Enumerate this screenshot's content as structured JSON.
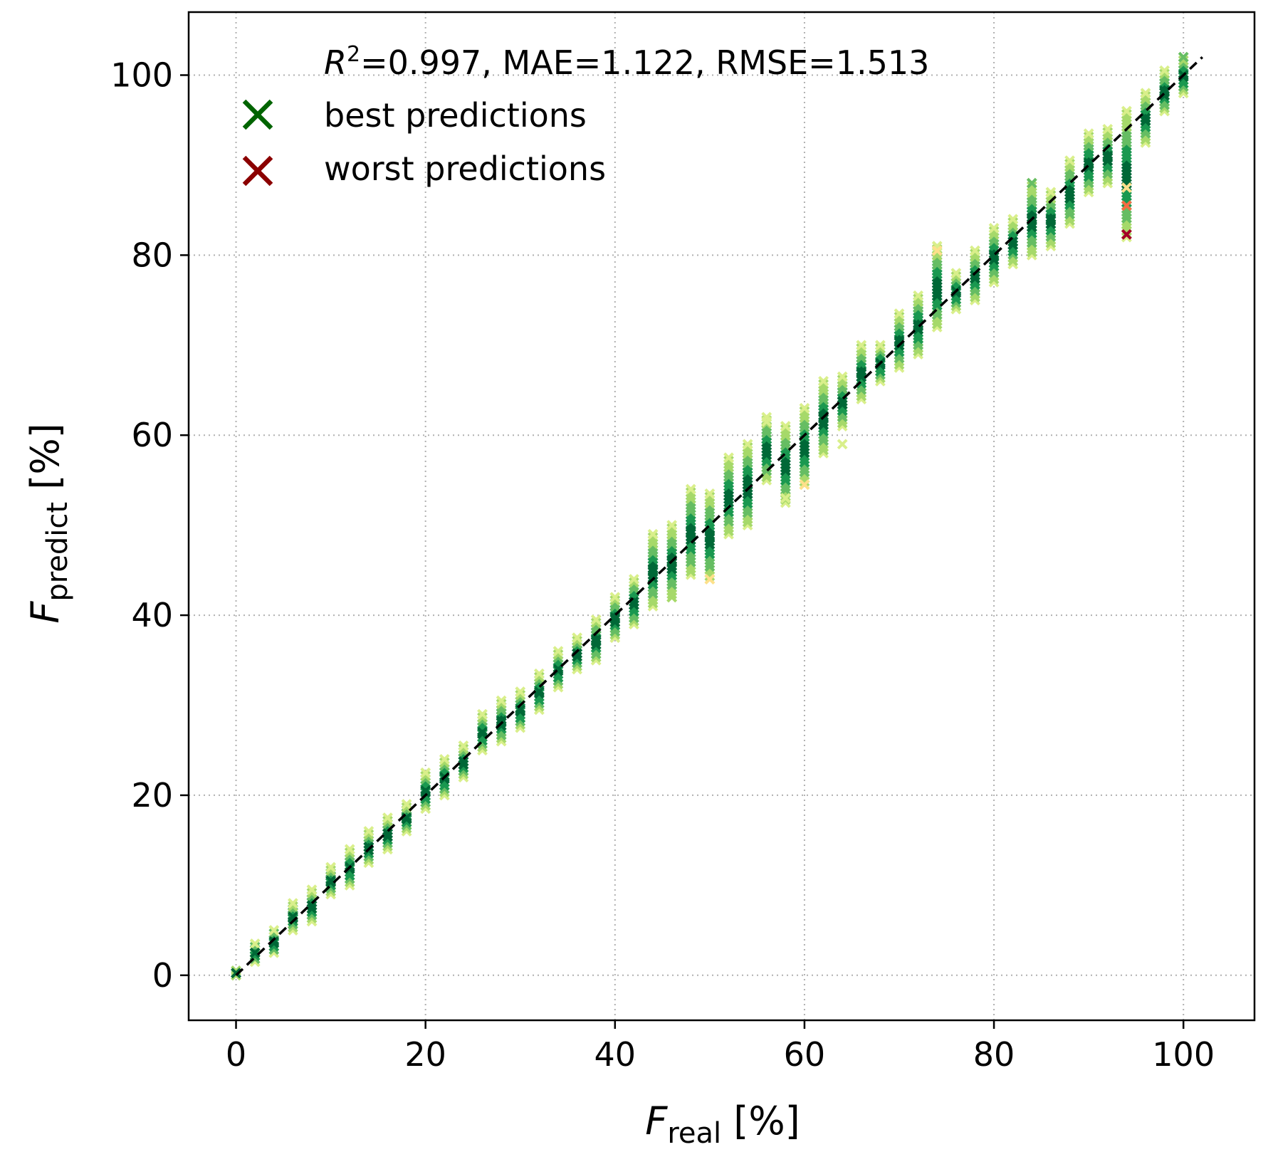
{
  "chart_data": {
    "type": "scatter",
    "title": "",
    "xlabel": {
      "main": "F",
      "sub": "real",
      "unit": " [%]"
    },
    "ylabel": {
      "main": "F",
      "sub": "predict",
      "unit": " [%]"
    },
    "xlim": [
      -5,
      107.5
    ],
    "ylim": [
      -5,
      107
    ],
    "xticks": [
      0,
      20,
      40,
      60,
      80,
      100
    ],
    "yticks": [
      0,
      20,
      40,
      60,
      80,
      100
    ],
    "grid": true,
    "metrics": {
      "r2_label": "R",
      "r2_exp": "2",
      "text": "=0.997, MAE=1.122, RMSE=1.513"
    },
    "legend": {
      "position": "top-left",
      "entries": [
        {
          "label": "best predictions",
          "color": "#006400"
        },
        {
          "label": "worst predictions",
          "color": "#8b0000"
        }
      ]
    },
    "reference_line": {
      "style": "dashed",
      "color": "#000000",
      "x": [
        0,
        102
      ],
      "y": [
        0,
        102
      ]
    },
    "colormap": [
      "#006837",
      "#1a9850",
      "#66bd63",
      "#a6d96a",
      "#d9ef8b",
      "#fee08b",
      "#fdae61",
      "#f46d43",
      "#d73027",
      "#a50026"
    ],
    "x_values": [
      0,
      2,
      4,
      6,
      8,
      10,
      12,
      14,
      16,
      18,
      20,
      22,
      24,
      26,
      28,
      30,
      32,
      34,
      36,
      38,
      40,
      42,
      44,
      46,
      48,
      50,
      52,
      54,
      56,
      58,
      60,
      62,
      64,
      66,
      68,
      70,
      72,
      74,
      76,
      78,
      80,
      82,
      84,
      86,
      88,
      90,
      92,
      94,
      96,
      98,
      100
    ],
    "y_ranges": [
      [
        0,
        0.5
      ],
      [
        1.5,
        3.5
      ],
      [
        2.5,
        5
      ],
      [
        5,
        8
      ],
      [
        6,
        9.5
      ],
      [
        9,
        12
      ],
      [
        10,
        14
      ],
      [
        12.5,
        16
      ],
      [
        14,
        17.5
      ],
      [
        16,
        19
      ],
      [
        18.5,
        22.5
      ],
      [
        20,
        24
      ],
      [
        22,
        25.5
      ],
      [
        25,
        29
      ],
      [
        26,
        30.5
      ],
      [
        27.5,
        31.5
      ],
      [
        29.5,
        33.5
      ],
      [
        32,
        36
      ],
      [
        34,
        37.5
      ],
      [
        35,
        39.5
      ],
      [
        37.5,
        42
      ],
      [
        39,
        44
      ],
      [
        41,
        49
      ],
      [
        42,
        50
      ],
      [
        44.5,
        54
      ],
      [
        44,
        53.5
      ],
      [
        49,
        57.5
      ],
      [
        50,
        59
      ],
      [
        55,
        62
      ],
      [
        52.5,
        61
      ],
      [
        54.5,
        63
      ],
      [
        58,
        66
      ],
      [
        61,
        66.5
      ],
      [
        64,
        70
      ],
      [
        66,
        70
      ],
      [
        67.5,
        73.5
      ],
      [
        69,
        75.5
      ],
      [
        72,
        81
      ],
      [
        74,
        78
      ],
      [
        75,
        80.5
      ],
      [
        77,
        83
      ],
      [
        79,
        84
      ],
      [
        80,
        88
      ],
      [
        81,
        87
      ],
      [
        83.5,
        90.5
      ],
      [
        87,
        93.5
      ],
      [
        88,
        94
      ],
      [
        82,
        96
      ],
      [
        92.5,
        98
      ],
      [
        96,
        100.5
      ],
      [
        98,
        102
      ]
    ],
    "outliers": [
      {
        "x": 94,
        "y": 82.3,
        "color": "#a50026"
      },
      {
        "x": 94,
        "y": 85.5,
        "color": "#f46d43"
      },
      {
        "x": 94,
        "y": 87.5,
        "color": "#fee08b"
      },
      {
        "x": 74,
        "y": 80.5,
        "color": "#fee08b"
      },
      {
        "x": 58,
        "y": 53,
        "color": "#d9ef8b"
      },
      {
        "x": 56,
        "y": 61.5,
        "color": "#d9ef8b"
      },
      {
        "x": 64,
        "y": 59,
        "color": "#d9ef8b"
      },
      {
        "x": 84,
        "y": 88,
        "color": "#66bd63"
      },
      {
        "x": 100,
        "y": 102,
        "color": "#66bd63"
      },
      {
        "x": 50,
        "y": 44,
        "color": "#fee08b"
      },
      {
        "x": 46,
        "y": 42,
        "color": "#a6d96a"
      },
      {
        "x": 60,
        "y": 54.5,
        "color": "#fee08b"
      }
    ]
  }
}
